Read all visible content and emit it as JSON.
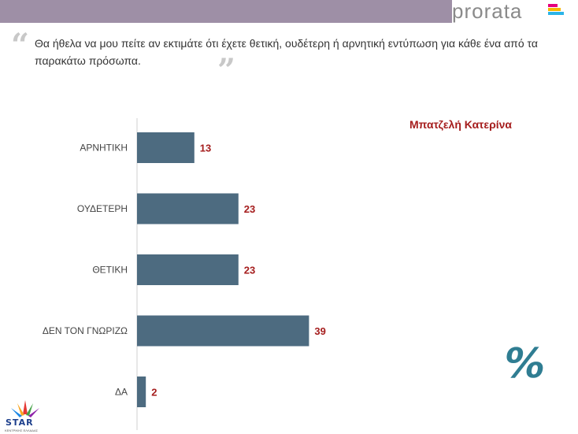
{
  "header": {
    "brand": "prorata"
  },
  "question": "Θα ήθελα να μου πείτε αν εκτιμάτε ότι έχετε θετική, ουδέτερη ή αρνητική εντύπωση για κάθε ένα από τα παρακάτω πρόσωπα.",
  "colors": {
    "bar": "#4d6b80",
    "value_label": "#a51d1d",
    "axis": "#d0d0d0",
    "topbar": "#9e8fa6",
    "percent": "#2f7d92"
  },
  "icons": {
    "quote_open": "quote-open-icon",
    "quote_close": "quote-close-icon",
    "percent": "percent-icon",
    "logo": "star-logo"
  },
  "percent_symbol": "%",
  "logo": {
    "name": "STAR",
    "subtitle": "ΚΕΝΤΡΙΚΗΣ ΕΛΛΑΔΑΣ"
  },
  "chart_data": {
    "type": "bar",
    "orientation": "horizontal",
    "title": "Μπατζελή Κατερίνα",
    "categories": [
      "ΑΡΝΗΤΙΚΗ",
      "ΟΥΔΕΤΕΡΗ",
      "ΘΕΤΙΚΗ",
      "ΔΕΝ ΤΟΝ ΓΝΩΡΙΖΩ",
      "ΔΑ"
    ],
    "values": [
      13,
      23,
      23,
      39,
      2
    ],
    "xlim": [
      0,
      100
    ],
    "grid": false,
    "legend": "none"
  }
}
